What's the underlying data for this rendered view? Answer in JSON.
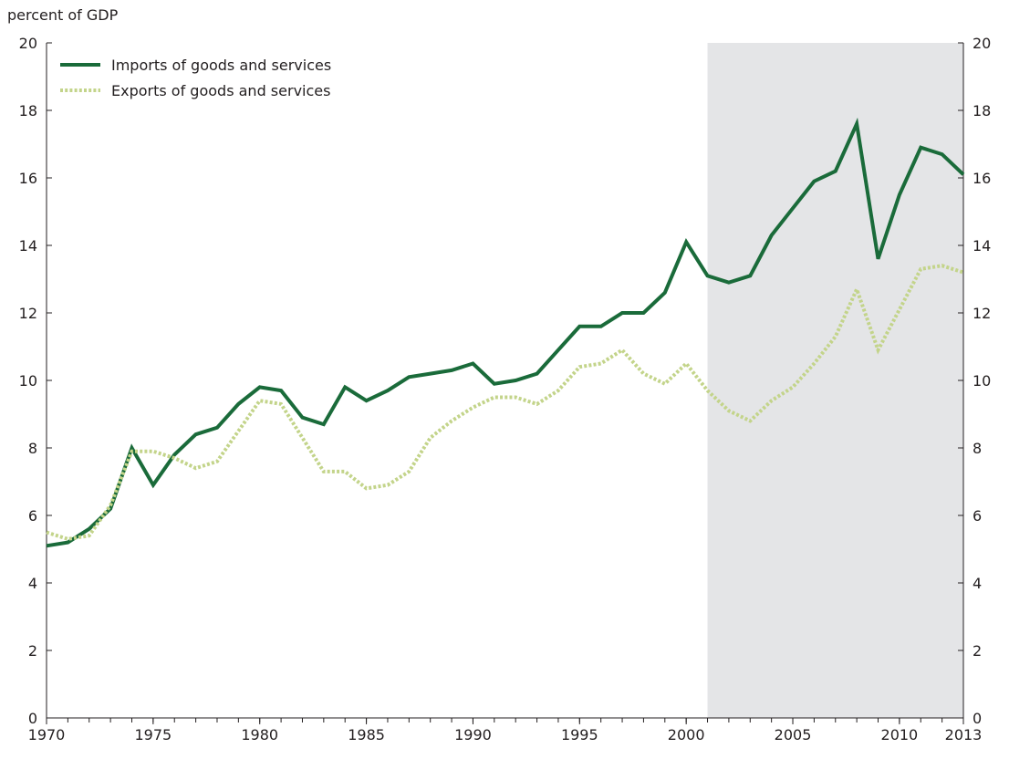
{
  "chart_data": {
    "type": "line",
    "ylabel": "percent of GDP",
    "ylim": [
      0,
      20
    ],
    "yticks": [
      0,
      2,
      4,
      6,
      8,
      10,
      12,
      14,
      16,
      18,
      20
    ],
    "xlim": [
      1970,
      2013
    ],
    "xticks": [
      1970,
      1975,
      1980,
      1985,
      1990,
      1995,
      2000,
      2005,
      2010,
      2013
    ],
    "shaded_region": {
      "from": 2001,
      "to": 2013,
      "color": "#e4e5e7"
    },
    "legend_position": "top-left",
    "grid": false,
    "x": [
      1970,
      1971,
      1972,
      1973,
      1974,
      1975,
      1976,
      1977,
      1978,
      1979,
      1980,
      1981,
      1982,
      1983,
      1984,
      1985,
      1986,
      1987,
      1988,
      1989,
      1990,
      1991,
      1992,
      1993,
      1994,
      1995,
      1996,
      1997,
      1998,
      1999,
      2000,
      2001,
      2002,
      2003,
      2004,
      2005,
      2006,
      2007,
      2008,
      2009,
      2010,
      2011,
      2012,
      2013
    ],
    "series": [
      {
        "name": "Imports of goods and services",
        "color": "#1a6b3a",
        "style": "solid",
        "values": [
          5.1,
          5.2,
          5.6,
          6.2,
          8.0,
          6.9,
          7.8,
          8.4,
          8.6,
          9.3,
          9.8,
          9.7,
          8.9,
          8.7,
          9.8,
          9.4,
          9.7,
          10.1,
          10.2,
          10.3,
          10.5,
          9.9,
          10.0,
          10.2,
          10.9,
          11.6,
          11.6,
          12.0,
          12.0,
          12.6,
          14.1,
          13.1,
          12.9,
          13.1,
          14.3,
          15.1,
          15.9,
          16.2,
          17.6,
          13.6,
          15.5,
          16.9,
          16.7,
          16.1
        ]
      },
      {
        "name": "Exports of goods and services",
        "color": "#c3d48a",
        "style": "dotted",
        "values": [
          5.5,
          5.3,
          5.4,
          6.3,
          7.9,
          7.9,
          7.7,
          7.4,
          7.6,
          8.5,
          9.4,
          9.3,
          8.3,
          7.3,
          7.3,
          6.8,
          6.9,
          7.3,
          8.3,
          8.8,
          9.2,
          9.5,
          9.5,
          9.3,
          9.7,
          10.4,
          10.5,
          10.9,
          10.2,
          9.9,
          10.5,
          9.7,
          9.1,
          8.8,
          9.4,
          9.8,
          10.5,
          11.3,
          12.7,
          10.9,
          12.1,
          13.3,
          13.4,
          13.2
        ]
      }
    ]
  }
}
